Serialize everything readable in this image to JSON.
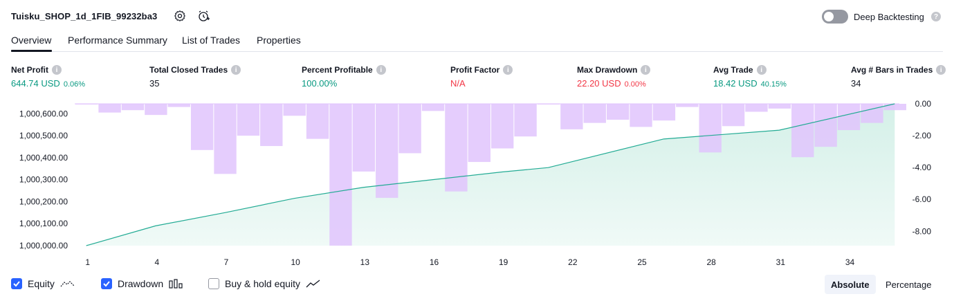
{
  "header": {
    "strategy_title": "Tuisku_SHOP_1d_1FIB_99232ba3",
    "settings_icon": "gear-icon",
    "alert_icon": "alarm-clock-plus-icon",
    "deep_backtesting_label": "Deep Backtesting",
    "deep_backtesting_enabled": false
  },
  "tabs": [
    {
      "label": "Overview",
      "active": true
    },
    {
      "label": "Performance Summary",
      "active": false
    },
    {
      "label": "List of Trades",
      "active": false
    },
    {
      "label": "Properties",
      "active": false
    }
  ],
  "metrics": {
    "net_profit": {
      "label": "Net Profit",
      "value": "644.74 USD",
      "pct": "0.06%"
    },
    "total_closed_trades": {
      "label": "Total Closed Trades",
      "value": "35"
    },
    "percent_profitable": {
      "label": "Percent Profitable",
      "value": "100.00%"
    },
    "profit_factor": {
      "label": "Profit Factor",
      "value": "N/A"
    },
    "max_drawdown": {
      "label": "Max Drawdown",
      "value": "22.20 USD",
      "pct": "0.00%"
    },
    "avg_trade": {
      "label": "Avg Trade",
      "value": "18.42 USD",
      "pct": "40.15%"
    },
    "avg_bars": {
      "label": "Avg # Bars in Trades",
      "value": "34"
    }
  },
  "colors": {
    "positive": "#089981",
    "negative": "#f23645",
    "equity_line": "#22ab94",
    "equity_fill": "#d4f0e8",
    "drawdown_bar": "#e1c4fd",
    "accent": "#2962ff"
  },
  "chart_data": {
    "type": "area",
    "left_axis": {
      "ticks": [
        "1,000,600.00",
        "1,000,500.00",
        "1,000,400.00",
        "1,000,300.00",
        "1,000,200.00",
        "1,000,100.00",
        "1,000,000.00"
      ],
      "ylim": [
        1000000,
        1000645
      ]
    },
    "right_axis": {
      "ticks": [
        "0.00",
        "-2.00",
        "-4.00",
        "-6.00",
        "-8.00"
      ],
      "ylim": [
        -8.9,
        0
      ]
    },
    "x_ticks": [
      "1",
      "4",
      "7",
      "10",
      "13",
      "16",
      "19",
      "22",
      "25",
      "28",
      "31",
      "34"
    ],
    "series": [
      {
        "type": "area",
        "axis": "left",
        "x": [
          1,
          4,
          7,
          10,
          13,
          16,
          19,
          21,
          26,
          31,
          36
        ],
        "values": [
          1000000,
          1000090,
          1000150,
          1000215,
          1000265,
          1000300,
          1000335,
          1000355,
          1000485,
          1000525,
          1000645
        ]
      },
      {
        "type": "bar",
        "axis": "right",
        "x": [
          1,
          2,
          3,
          4,
          5,
          6,
          7,
          8,
          9,
          10,
          11,
          12,
          13,
          14,
          15,
          16,
          17,
          18,
          19,
          20,
          21,
          22,
          23,
          24,
          25,
          26,
          27,
          28,
          29,
          30,
          31,
          32,
          33,
          34,
          35,
          36
        ],
        "values": [
          -0.02,
          -0.55,
          -0.4,
          -0.7,
          -0.2,
          -2.9,
          -4.4,
          -2.0,
          -2.65,
          -0.75,
          -2.2,
          -8.9,
          -4.25,
          -5.9,
          -3.1,
          -0.45,
          -5.5,
          -3.65,
          -2.8,
          -2.05,
          -0.02,
          -1.6,
          -1.2,
          -1.0,
          -1.45,
          -1.05,
          -0.2,
          -3.05,
          -1.4,
          -0.5,
          -0.3,
          -3.35,
          -2.7,
          -1.65,
          -1.2,
          -0.4
        ]
      }
    ]
  },
  "legend": {
    "equity": {
      "label": "Equity",
      "checked": true,
      "icon": "equity-line-icon"
    },
    "drawdown": {
      "label": "Drawdown",
      "checked": true,
      "icon": "drawdown-bars-icon"
    },
    "buy_hold": {
      "label": "Buy & hold equity",
      "checked": false,
      "icon": "buy-hold-line-icon"
    }
  },
  "scale_toggle": {
    "absolute_label": "Absolute",
    "percentage_label": "Percentage",
    "selected": "Absolute"
  }
}
